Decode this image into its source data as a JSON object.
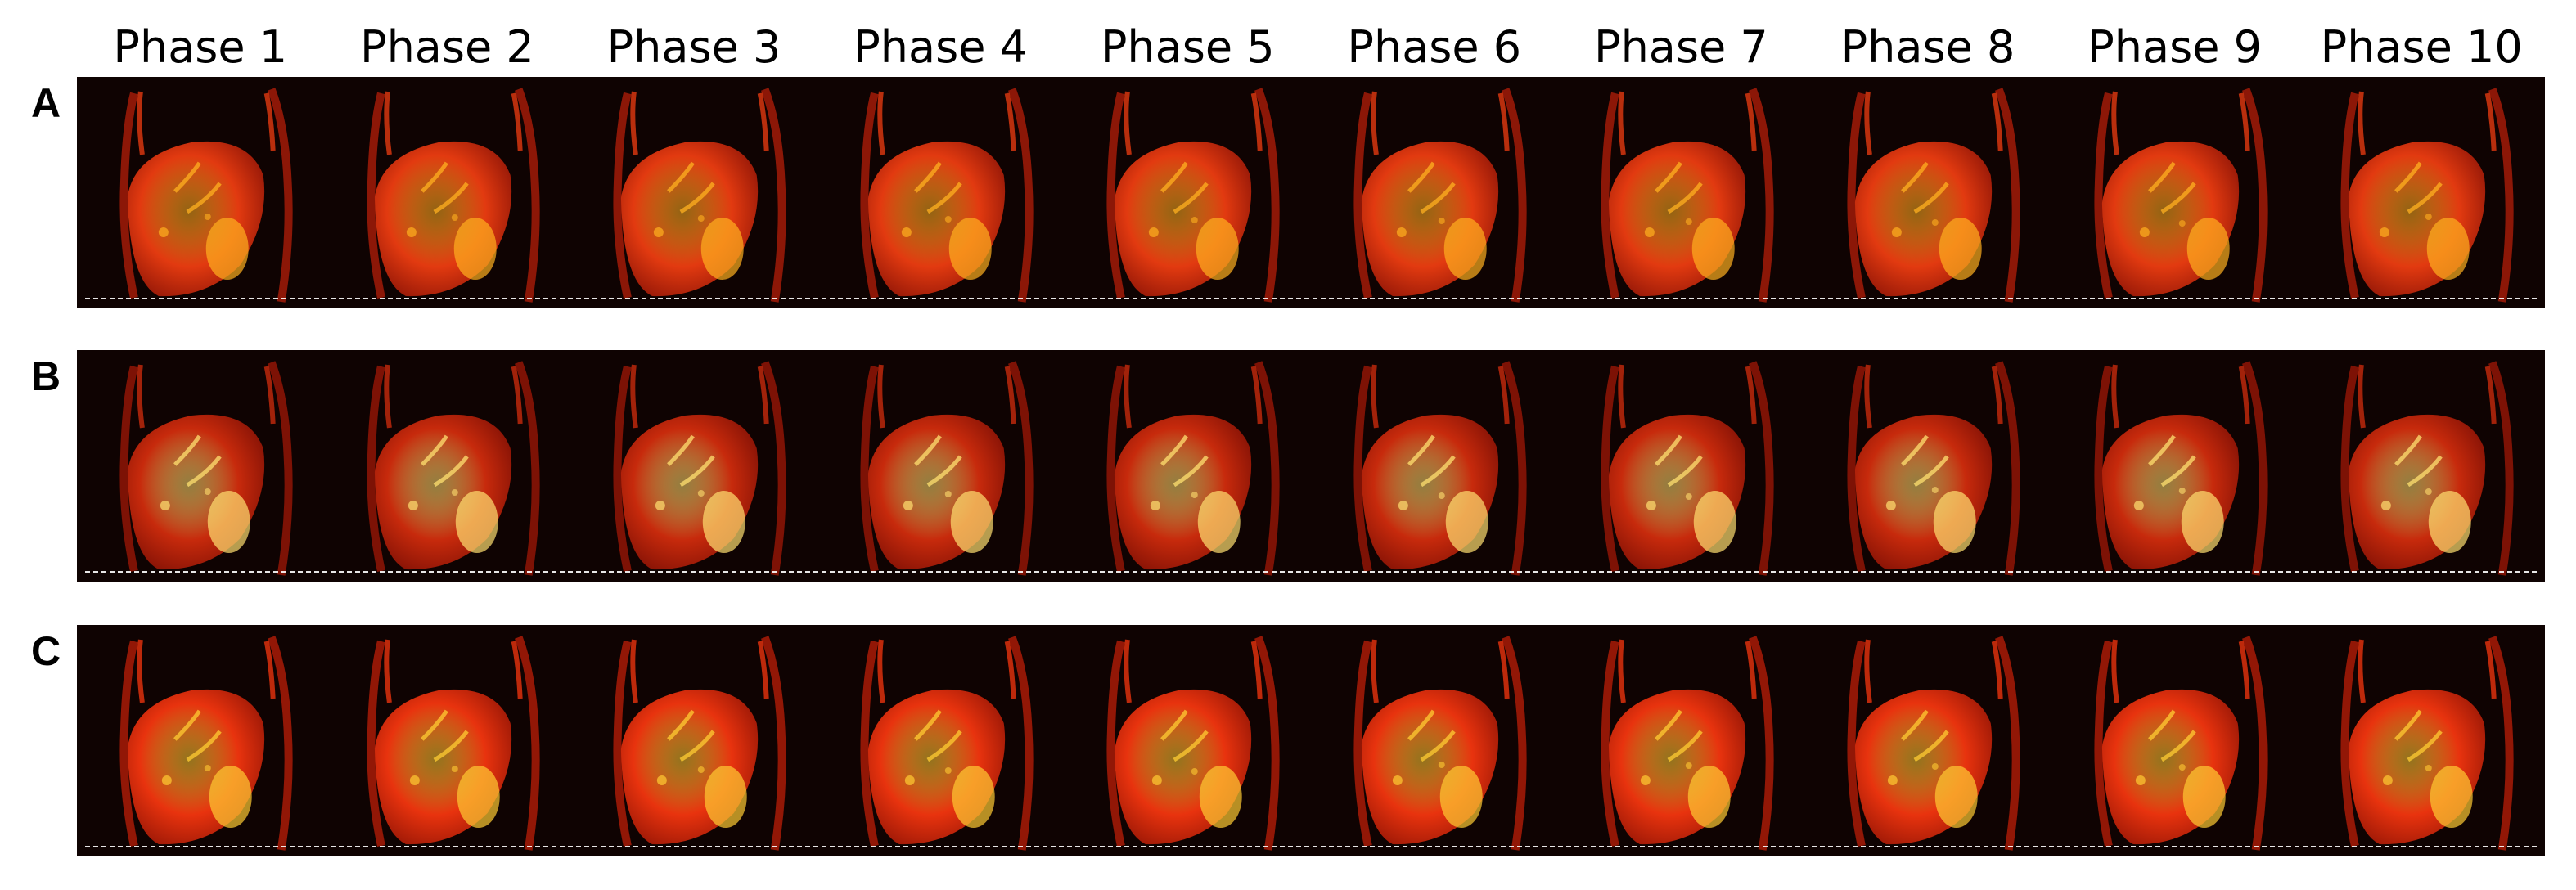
{
  "phases": [
    "Phase 1",
    "Phase 2",
    "Phase 3",
    "Phase 4",
    "Phase 5",
    "Phase 6",
    "Phase 7",
    "Phase 8",
    "Phase 9",
    "Phase 10"
  ],
  "rows": [
    {
      "label": "A",
      "palette": {
        "organ": "#e23a10",
        "bright": "#ffb020",
        "edge": "#9a1a08"
      }
    },
    {
      "label": "B",
      "palette": {
        "organ": "#c72a0c",
        "bright": "#ffe070",
        "edge": "#8a1406"
      }
    },
    {
      "label": "C",
      "palette": {
        "organ": "#e8330e",
        "bright": "#ffcc33",
        "edge": "#a11a07"
      }
    }
  ],
  "colors": {
    "background": "#0f0302",
    "dashed_line": "#ffffff"
  }
}
